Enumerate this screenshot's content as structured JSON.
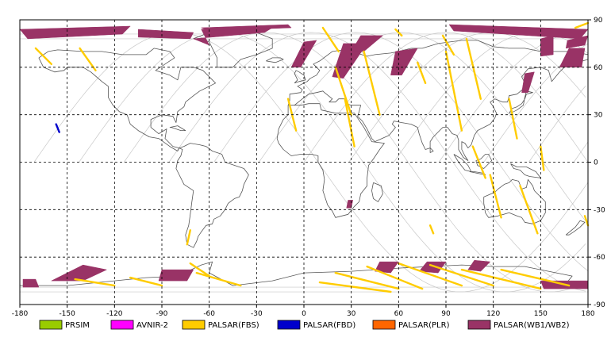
{
  "map": {
    "lon_range": [
      -180,
      180
    ],
    "lat_range": [
      -90,
      90
    ],
    "x_ticks": [
      {
        "value": -180,
        "label": "-180"
      },
      {
        "value": -150,
        "label": "-150"
      },
      {
        "value": -120,
        "label": "-120"
      },
      {
        "value": -90,
        "label": "-90"
      },
      {
        "value": -60,
        "label": "-60"
      },
      {
        "value": -30,
        "label": "-30"
      },
      {
        "value": 0,
        "label": "0"
      },
      {
        "value": 30,
        "label": "30"
      },
      {
        "value": 60,
        "label": "60"
      },
      {
        "value": 90,
        "label": "90"
      },
      {
        "value": 120,
        "label": "120"
      },
      {
        "value": 150,
        "label": "150"
      },
      {
        "value": 180,
        "label": "180"
      }
    ],
    "y_ticks": [
      {
        "value": 90,
        "label": "90"
      },
      {
        "value": 60,
        "label": "60"
      },
      {
        "value": 30,
        "label": "30"
      },
      {
        "value": 0,
        "label": "0"
      },
      {
        "value": -30,
        "label": "-30"
      },
      {
        "value": -60,
        "label": "-60"
      },
      {
        "value": -90,
        "label": "-90"
      }
    ],
    "grid": "dashed",
    "colors": {
      "frame": "#000000",
      "grid": "#000000",
      "coast": "#555555",
      "orbit": "#c8c8c8",
      "prism": "#99cc00",
      "avnir": "#ff00ff",
      "fbs": "#ffcc00",
      "fbd": "#0000cc",
      "plr": "#ff6600",
      "wb": "#993366"
    }
  },
  "legend": [
    {
      "key": "prism",
      "label": "PRSIM",
      "color": "#99cc00"
    },
    {
      "key": "avnir",
      "label": "AVNIR-2",
      "color": "#ff00ff"
    },
    {
      "key": "fbs",
      "label": "PALSAR(FBS)",
      "color": "#ffcc00"
    },
    {
      "key": "fbd",
      "label": "PALSAR(FBD)",
      "color": "#0000cc"
    },
    {
      "key": "plr",
      "label": "PALSAR(PLR)",
      "color": "#ff6600"
    },
    {
      "key": "wb",
      "label": "PALSAR(WB1/WB2)",
      "color": "#993366"
    }
  ],
  "coverage": {
    "wb": [
      {
        "poly": [
          [
            -180,
            84
          ],
          [
            -110,
            86
          ],
          [
            -115,
            81
          ],
          [
            -175,
            78
          ]
        ]
      },
      {
        "poly": [
          [
            -105,
            84
          ],
          [
            -70,
            82
          ],
          [
            -72,
            78
          ],
          [
            -105,
            79
          ]
        ]
      },
      {
        "poly": [
          [
            -65,
            84
          ],
          [
            -20,
            85
          ],
          [
            -25,
            82
          ],
          [
            -70,
            78
          ],
          [
            -60,
            74
          ]
        ]
      },
      {
        "poly": [
          [
            -65,
            85
          ],
          [
            -10,
            87
          ],
          [
            -8,
            85
          ],
          [
            -60,
            83
          ]
        ]
      },
      {
        "poly": [
          [
            0,
            76
          ],
          [
            8,
            77
          ],
          [
            -2,
            60
          ],
          [
            -8,
            60
          ]
        ]
      },
      {
        "poly": [
          [
            25,
            75
          ],
          [
            40,
            75
          ],
          [
            25,
            53
          ],
          [
            18,
            54
          ]
        ]
      },
      {
        "poly": [
          [
            36,
            80
          ],
          [
            50,
            80
          ],
          [
            38,
            70
          ],
          [
            30,
            70
          ]
        ]
      },
      {
        "poly": [
          [
            58,
            70
          ],
          [
            72,
            72
          ],
          [
            62,
            55
          ],
          [
            55,
            55
          ]
        ]
      },
      {
        "poly": [
          [
            92,
            87
          ],
          [
            180,
            84
          ],
          [
            175,
            78
          ],
          [
            95,
            83
          ]
        ]
      },
      {
        "poly": [
          [
            150,
            78
          ],
          [
            158,
            80
          ],
          [
            158,
            68
          ],
          [
            150,
            67
          ]
        ]
      },
      {
        "poly": [
          [
            168,
            72
          ],
          [
            178,
            72
          ],
          [
            176,
            60
          ],
          [
            162,
            60
          ]
        ]
      },
      {
        "poly": [
          [
            140,
            56
          ],
          [
            146,
            57
          ],
          [
            142,
            44
          ],
          [
            138,
            44
          ]
        ]
      },
      {
        "poly": [
          [
            167,
            77
          ],
          [
            180,
            80
          ],
          [
            178,
            74
          ],
          [
            166,
            72
          ]
        ]
      },
      {
        "poly": [
          [
            -178,
            -74
          ],
          [
            -170,
            -74
          ],
          [
            -168,
            -79
          ],
          [
            -178,
            -79
          ]
        ]
      },
      {
        "poly": [
          [
            -140,
            -65
          ],
          [
            -125,
            -68
          ],
          [
            -140,
            -75
          ],
          [
            -160,
            -75
          ]
        ]
      },
      {
        "poly": [
          [
            -90,
            -68
          ],
          [
            -70,
            -68
          ],
          [
            -74,
            -75
          ],
          [
            -92,
            -75
          ]
        ]
      },
      {
        "poly": [
          [
            48,
            -63
          ],
          [
            60,
            -63
          ],
          [
            55,
            -70
          ],
          [
            45,
            -69
          ]
        ]
      },
      {
        "poly": [
          [
            78,
            -63
          ],
          [
            90,
            -63
          ],
          [
            85,
            -70
          ],
          [
            73,
            -69
          ]
        ]
      },
      {
        "poly": [
          [
            108,
            -62
          ],
          [
            118,
            -63
          ],
          [
            112,
            -69
          ],
          [
            104,
            -68
          ]
        ]
      },
      {
        "poly": [
          [
            150,
            -75
          ],
          [
            180,
            -75
          ],
          [
            180,
            -80
          ],
          [
            152,
            -80
          ]
        ]
      },
      {
        "poly": [
          [
            28,
            -24
          ],
          [
            31,
            -24
          ],
          [
            30,
            -29
          ],
          [
            27,
            -29
          ]
        ]
      }
    ],
    "fbs": [
      {
        "line": [
          [
            -170,
            72
          ],
          [
            -160,
            62
          ]
        ]
      },
      {
        "line": [
          [
            -142,
            72
          ],
          [
            -132,
            58
          ]
        ]
      },
      {
        "line": [
          [
            -72,
            -43
          ],
          [
            -74,
            -52
          ]
        ]
      },
      {
        "line": [
          [
            -72,
            -64
          ],
          [
            -60,
            -72
          ]
        ]
      },
      {
        "line": [
          [
            -145,
            -74
          ],
          [
            -120,
            -78
          ]
        ]
      },
      {
        "line": [
          [
            -110,
            -73
          ],
          [
            -90,
            -78
          ]
        ]
      },
      {
        "line": [
          [
            -68,
            -70
          ],
          [
            -40,
            -78
          ]
        ]
      },
      {
        "line": [
          [
            -10,
            40
          ],
          [
            -5,
            20
          ]
        ]
      },
      {
        "line": [
          [
            12,
            85
          ],
          [
            22,
            70
          ]
        ]
      },
      {
        "line": [
          [
            20,
            60
          ],
          [
            30,
            30
          ]
        ]
      },
      {
        "line": [
          [
            26,
            40
          ],
          [
            32,
            10
          ]
        ]
      },
      {
        "line": [
          [
            38,
            70
          ],
          [
            48,
            30
          ]
        ]
      },
      {
        "line": [
          [
            10,
            -76
          ],
          [
            55,
            -82
          ]
        ]
      },
      {
        "line": [
          [
            20,
            -70
          ],
          [
            60,
            -80
          ]
        ]
      },
      {
        "line": [
          [
            40,
            -66
          ],
          [
            75,
            -80
          ]
        ]
      },
      {
        "line": [
          [
            60,
            -64
          ],
          [
            100,
            -78
          ]
        ]
      },
      {
        "line": [
          [
            80,
            -65
          ],
          [
            120,
            -78
          ]
        ]
      },
      {
        "line": [
          [
            100,
            -68
          ],
          [
            150,
            -80
          ]
        ]
      },
      {
        "line": [
          [
            125,
            -68
          ],
          [
            168,
            -78
          ]
        ]
      },
      {
        "line": [
          [
            58,
            84
          ],
          [
            62,
            80
          ]
        ]
      },
      {
        "line": [
          [
            72,
            63
          ],
          [
            77,
            50
          ]
        ]
      },
      {
        "line": [
          [
            88,
            80
          ],
          [
            95,
            68
          ]
        ]
      },
      {
        "line": [
          [
            90,
            70
          ],
          [
            100,
            20
          ]
        ]
      },
      {
        "line": [
          [
            103,
            78
          ],
          [
            112,
            40
          ]
        ]
      },
      {
        "line": [
          [
            107,
            10
          ],
          [
            115,
            -10
          ]
        ]
      },
      {
        "line": [
          [
            118,
            -8
          ],
          [
            125,
            -35
          ]
        ]
      },
      {
        "line": [
          [
            130,
            40
          ],
          [
            135,
            15
          ]
        ]
      },
      {
        "line": [
          [
            137,
            -15
          ],
          [
            148,
            -45
          ]
        ]
      },
      {
        "line": [
          [
            150,
            10
          ],
          [
            152,
            -5
          ]
        ]
      },
      {
        "line": [
          [
            178,
            -34
          ],
          [
            180,
            -40
          ]
        ]
      },
      {
        "line": [
          [
            80,
            -40
          ],
          [
            82,
            -45
          ]
        ]
      },
      {
        "line": [
          [
            172,
            85
          ],
          [
            180,
            88
          ]
        ]
      }
    ],
    "fbd": [
      {
        "line": [
          [
            -157,
            24
          ],
          [
            -155,
            19
          ]
        ]
      }
    ]
  }
}
